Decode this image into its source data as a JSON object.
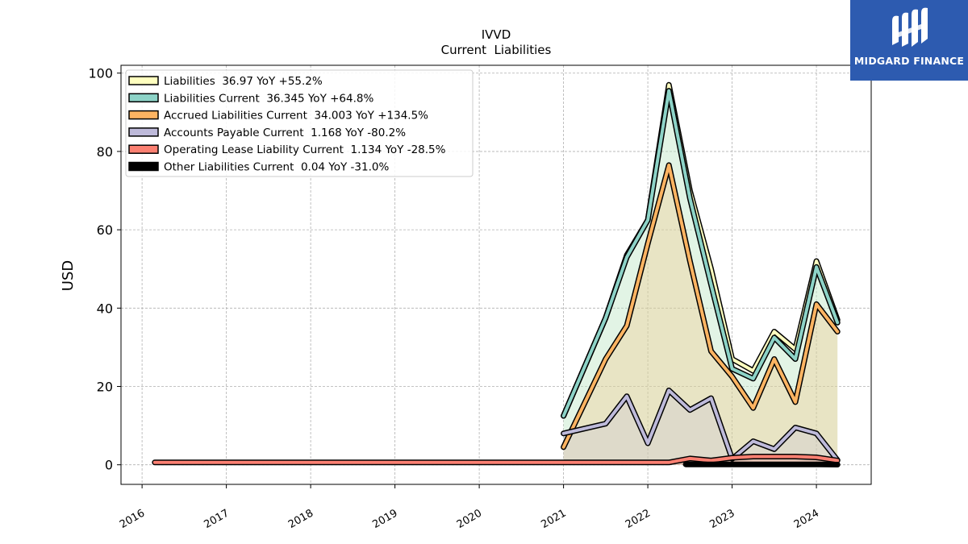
{
  "chart_data": {
    "type": "line",
    "title": "IVVD",
    "subtitle": "Current  Liabilities",
    "ylabel": "USD",
    "xlabel": "",
    "ylim": [
      -5,
      102
    ],
    "xlim": [
      2015.75,
      2024.65
    ],
    "yticks": [
      0,
      20,
      40,
      60,
      80,
      100
    ],
    "xticks": [
      "2016",
      "2017",
      "2018",
      "2019",
      "2020",
      "2021",
      "2022",
      "2023",
      "2024"
    ],
    "grid": true,
    "legend_position": "top-left",
    "series": [
      {
        "name": "Liabilities  36.97 YoY +55.2%",
        "color": "#ffffbf",
        "points": [
          [
            2021.0,
            12.5
          ],
          [
            2021.5,
            37.5
          ],
          [
            2021.75,
            53.5
          ],
          [
            2022.0,
            62.5
          ],
          [
            2022.25,
            97.0
          ],
          [
            2022.5,
            70.0
          ],
          [
            2022.75,
            50.0
          ],
          [
            2023.0,
            27.0
          ],
          [
            2023.25,
            24.0
          ],
          [
            2023.5,
            34.0
          ],
          [
            2023.75,
            29.5
          ],
          [
            2024.0,
            52.0
          ],
          [
            2024.25,
            37.0
          ]
        ]
      },
      {
        "name": "Liabilities Current  36.345 YoY +64.8%",
        "color": "#8dd3c7",
        "points": [
          [
            2021.0,
            12.5
          ],
          [
            2021.5,
            37.5
          ],
          [
            2021.75,
            53.0
          ],
          [
            2022.0,
            62.5
          ],
          [
            2022.25,
            95.5
          ],
          [
            2022.5,
            68.0
          ],
          [
            2022.75,
            46.0
          ],
          [
            2023.0,
            24.5
          ],
          [
            2023.25,
            22.0
          ],
          [
            2023.5,
            32.5
          ],
          [
            2023.75,
            27.0
          ],
          [
            2024.0,
            50.5
          ],
          [
            2024.25,
            36.3
          ]
        ]
      },
      {
        "name": "Accrued Liabilities Current  34.003 YoY +134.5%",
        "color": "#fdb462",
        "points": [
          [
            2021.0,
            4.5
          ],
          [
            2021.5,
            27.0
          ],
          [
            2021.75,
            35.5
          ],
          [
            2022.0,
            56.5
          ],
          [
            2022.25,
            76.5
          ],
          [
            2022.5,
            52.0
          ],
          [
            2022.75,
            29.0
          ],
          [
            2023.0,
            22.5
          ],
          [
            2023.25,
            14.5
          ],
          [
            2023.5,
            27.0
          ],
          [
            2023.75,
            16.0
          ],
          [
            2024.0,
            41.0
          ],
          [
            2024.25,
            34.0
          ]
        ]
      },
      {
        "name": "Accounts Payable Current  1.168 YoY -80.2%",
        "color": "#bebada",
        "points": [
          [
            2021.0,
            8.0
          ],
          [
            2021.5,
            10.5
          ],
          [
            2021.75,
            17.5
          ],
          [
            2022.0,
            5.5
          ],
          [
            2022.25,
            19.0
          ],
          [
            2022.5,
            14.0
          ],
          [
            2022.75,
            17.0
          ],
          [
            2023.0,
            1.5
          ],
          [
            2023.25,
            6.0
          ],
          [
            2023.5,
            4.0
          ],
          [
            2023.75,
            9.5
          ],
          [
            2024.0,
            8.0
          ],
          [
            2024.25,
            1.2
          ]
        ]
      },
      {
        "name": "Operating Lease Liability Current  1.134 YoY -28.5%",
        "color": "#fb8072",
        "points": [
          [
            2016.15,
            0.6
          ],
          [
            2017.0,
            0.6
          ],
          [
            2018.0,
            0.6
          ],
          [
            2019.0,
            0.6
          ],
          [
            2020.0,
            0.6
          ],
          [
            2021.0,
            0.6
          ],
          [
            2022.0,
            0.6
          ],
          [
            2022.25,
            0.6
          ],
          [
            2022.5,
            1.6
          ],
          [
            2022.75,
            1.1
          ],
          [
            2023.0,
            1.8
          ],
          [
            2023.25,
            2.1
          ],
          [
            2023.5,
            2.1
          ],
          [
            2023.75,
            2.1
          ],
          [
            2024.0,
            1.9
          ],
          [
            2024.25,
            1.1
          ]
        ]
      },
      {
        "name": "Other Liabilities Current  0.04 YoY -31.0%",
        "color": "#000000",
        "points": [
          [
            2022.45,
            0.1
          ],
          [
            2022.75,
            0.1
          ],
          [
            2023.0,
            0.1
          ],
          [
            2023.25,
            0.1
          ],
          [
            2023.5,
            0.1
          ],
          [
            2023.75,
            0.1
          ],
          [
            2024.0,
            0.1
          ],
          [
            2024.25,
            0.04
          ]
        ]
      }
    ]
  },
  "logo": {
    "text": "MIDGARD FINANCE",
    "bg_color": "#2d5bb0"
  }
}
